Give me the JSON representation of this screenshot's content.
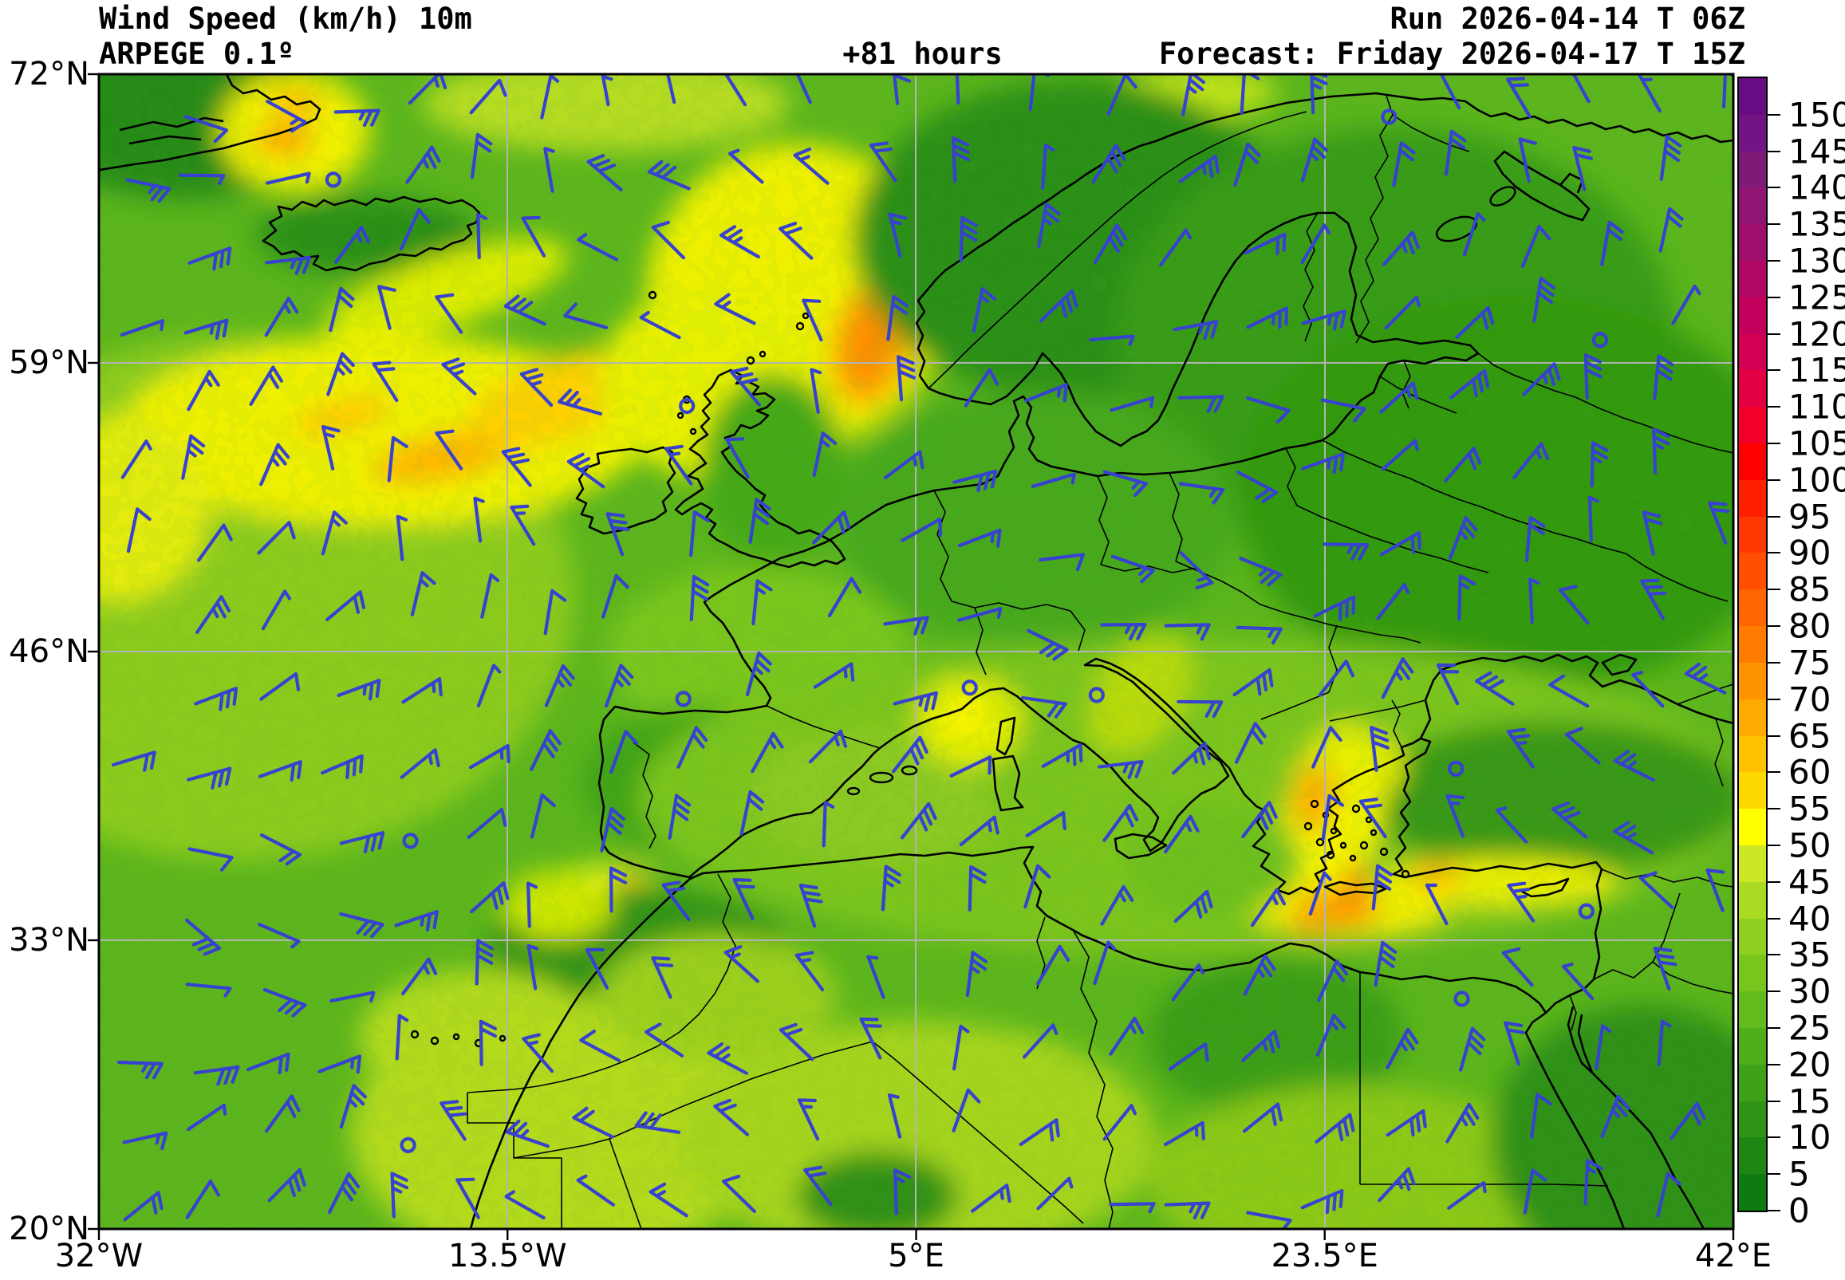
{
  "header": {
    "variable": "Wind Speed (km/h) 10m",
    "model": "ARPEGE 0.1º",
    "lead_time": "+81 hours",
    "run": "Run 2026-04-14 T 06Z",
    "forecast": "Forecast: Friday 2026-04-17 T 15Z"
  },
  "map": {
    "lat_tick_labels": [
      "72°N",
      "59°N",
      "46°N",
      "33°N",
      "20°N"
    ],
    "lon_tick_labels": [
      "32°W",
      "13.5°W",
      "5°E",
      "23.5°E",
      "42°E"
    ],
    "grid_color": "#b3b3b3",
    "coast_color": "#000000",
    "border_color": "#000000",
    "barb_color": "#3742d0",
    "sea_base_color": "#5cb51c"
  },
  "colorbar": {
    "title_unit": "km/h",
    "min": 0,
    "max": 155,
    "step": 5,
    "tick_labels": [
      "150",
      "145",
      "140",
      "135",
      "130",
      "125",
      "120",
      "115",
      "110",
      "105",
      "100",
      "95",
      "90",
      "85",
      "80",
      "75",
      "70",
      "65",
      "60",
      "55",
      "50",
      "45",
      "40",
      "35",
      "30",
      "25",
      "20",
      "15",
      "10",
      "5",
      "0"
    ],
    "colors_bottom_to_top": [
      "#0e7a12",
      "#1e8714",
      "#2e9416",
      "#3ea118",
      "#50ae1a",
      "#62bb1c",
      "#78c51e",
      "#90d020",
      "#aada22",
      "#cce824",
      "#ffff00",
      "#ffd800",
      "#ffc100",
      "#ffaa00",
      "#ff9300",
      "#ff7c00",
      "#ff6500",
      "#ff4e00",
      "#ff3700",
      "#ff2000",
      "#ff0000",
      "#f2002a",
      "#e20042",
      "#d10052",
      "#c2005c",
      "#b10764",
      "#a00e6b",
      "#8f1572",
      "#7e1b78",
      "#721484",
      "#670c82"
    ]
  }
}
